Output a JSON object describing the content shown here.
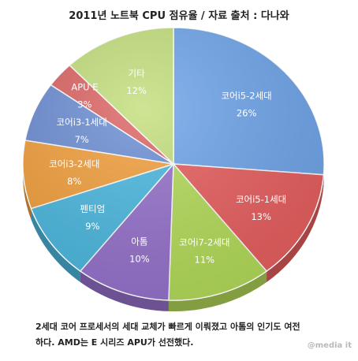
{
  "chart_data": {
    "type": "pie",
    "title": "2011년 노트북 CPU 점유율 / 자료 출처 : 다나와",
    "slices": [
      {
        "label": "코어i5-2세대",
        "value": 26,
        "display": "26%",
        "color": "#6fa5ea"
      },
      {
        "label": "코어i5-1세대",
        "value": 13,
        "display": "13%",
        "color": "#e85f5f"
      },
      {
        "label": "코어i7-2세대",
        "value": 11,
        "display": "11%",
        "color": "#b4dc5a"
      },
      {
        "label": "아톰",
        "value": 10,
        "display": "10%",
        "color": "#9672cc"
      },
      {
        "label": "펜티엄",
        "value": 9,
        "display": "9%",
        "color": "#4cb9e0"
      },
      {
        "label": "코어i3-2세대",
        "value": 8,
        "display": "8%",
        "color": "#f3a03e"
      },
      {
        "label": "코어i3-1세대",
        "value": 7,
        "display": "7%",
        "color": "#6d8fd5"
      },
      {
        "label": "APU E",
        "value": 3,
        "display": "3%",
        "color": "#dd6565"
      },
      {
        "label": "기타",
        "value": 12,
        "display": "12%",
        "color": "#c3df7d"
      }
    ]
  },
  "caption": {
    "line1": "2세대 코어 프로세서의 세대 교체가 빠르게 이뤄졌고 아톰의 인기도 여전",
    "line2": "하다. AMD는 E 시리즈 APU가 선전했다."
  },
  "watermark": "@media it"
}
